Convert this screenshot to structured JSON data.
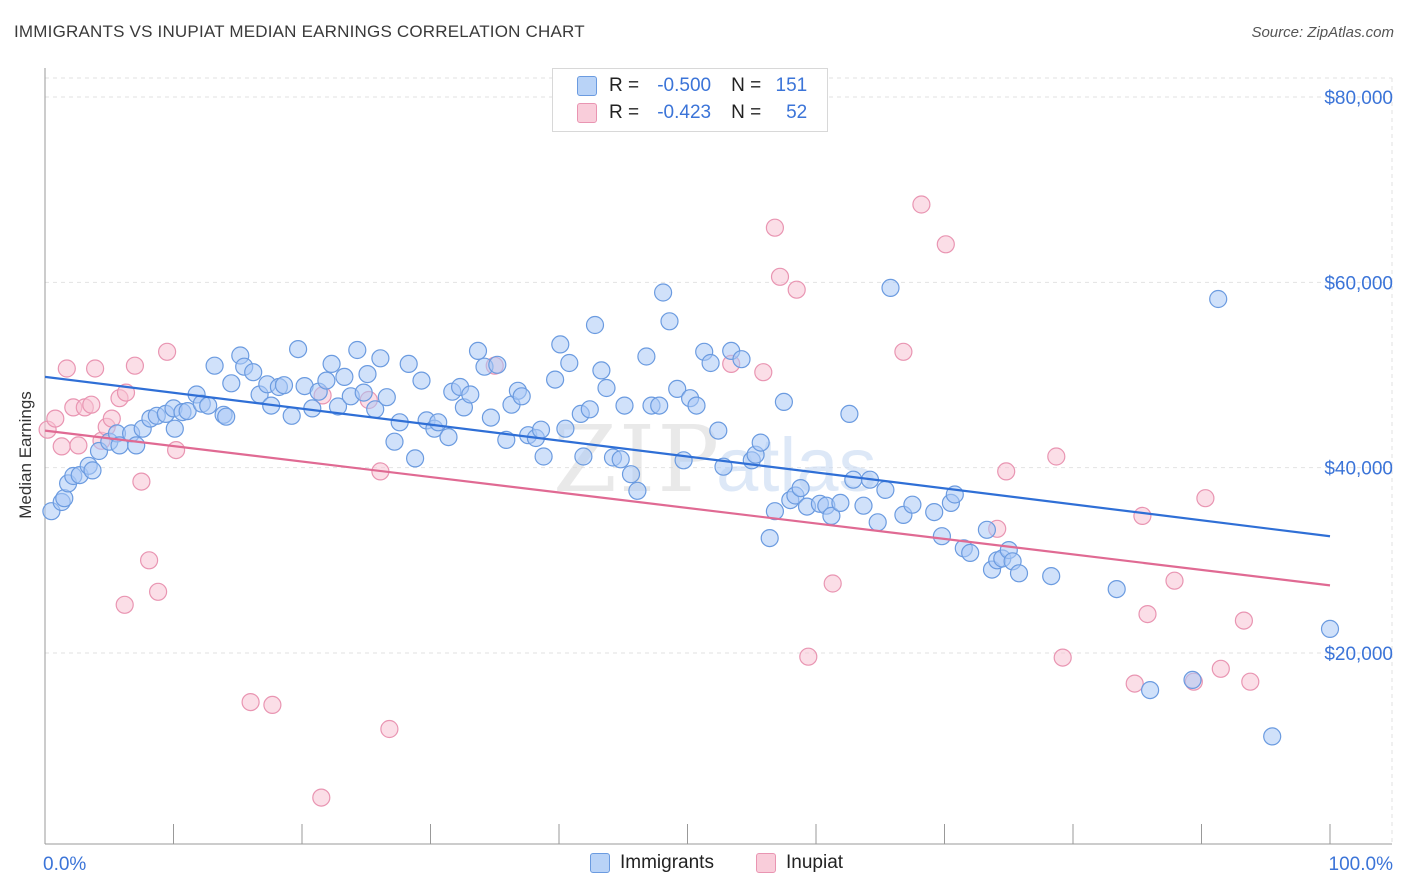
{
  "header": {
    "title": "IMMIGRANTS VS INUPIAT MEDIAN EARNINGS CORRELATION CHART",
    "source": "Source: ZipAtlas.com"
  },
  "legend_top": {
    "rows": [
      {
        "r_label": "R =",
        "r_value": "-0.500",
        "n_label": "N =",
        "n_value": "151"
      },
      {
        "r_label": "R =",
        "r_value": "-0.423",
        "n_label": "N =",
        "n_value": "52"
      }
    ]
  },
  "legend_bottom": {
    "items": [
      "Immigrants",
      "Inupiat"
    ]
  },
  "watermark": "ZIPatlas",
  "colors": {
    "immigrants_fill": "#a9c9f5",
    "immigrants_stroke": "#6b9be0",
    "immigrants_line": "#2f6fd6",
    "inupiat_fill": "#f7c3d3",
    "inupiat_stroke": "#e995b2",
    "inupiat_line": "#e06a93",
    "axis_label": "#3b74d8",
    "grid": "#e2e2e2"
  },
  "chart_data": {
    "type": "scatter",
    "title": "IMMIGRANTS VS INUPIAT MEDIAN EARNINGS CORRELATION CHART",
    "xlabel": "",
    "ylabel": "Median Earnings",
    "xlim": [
      0,
      100
    ],
    "ylim": [
      2000,
      85000
    ],
    "x_tick_labels": [
      "0.0%",
      "100.0%"
    ],
    "y_ticks": [
      20000,
      40000,
      60000,
      80000
    ],
    "y_tick_labels": [
      "$20,000",
      "$40,000",
      "$60,000",
      "$80,000"
    ],
    "grid": true,
    "legend_placement": "top-center and bottom",
    "series": [
      {
        "name": "Immigrants",
        "R": -0.5,
        "N": 151,
        "trend": {
          "x": [
            0,
            100
          ],
          "y": [
            49800,
            32600
          ]
        },
        "points": [
          [
            0.5,
            35.3
          ],
          [
            1.3,
            36.3
          ],
          [
            1.5,
            36.7
          ],
          [
            1.8,
            38.3
          ],
          [
            2.2,
            39.1
          ],
          [
            2.7,
            39.2
          ],
          [
            3.4,
            40.2
          ],
          [
            3.7,
            39.7
          ],
          [
            4.2,
            41.8
          ],
          [
            5.0,
            42.8
          ],
          [
            5.6,
            43.7
          ],
          [
            5.8,
            42.4
          ],
          [
            6.7,
            43.7
          ],
          [
            7.1,
            42.4
          ],
          [
            7.6,
            44.2
          ],
          [
            8.2,
            45.3
          ],
          [
            8.7,
            45.6
          ],
          [
            9.4,
            45.8
          ],
          [
            10.0,
            46.4
          ],
          [
            10.1,
            44.2
          ],
          [
            10.7,
            46.0
          ],
          [
            11.1,
            46.1
          ],
          [
            11.8,
            47.9
          ],
          [
            12.2,
            46.9
          ],
          [
            12.7,
            46.7
          ],
          [
            13.2,
            51.0
          ],
          [
            13.9,
            45.7
          ],
          [
            14.1,
            45.5
          ],
          [
            14.5,
            49.1
          ],
          [
            15.2,
            52.1
          ],
          [
            15.5,
            50.9
          ],
          [
            16.2,
            50.3
          ],
          [
            16.7,
            47.9
          ],
          [
            17.3,
            49.0
          ],
          [
            17.6,
            46.7
          ],
          [
            18.2,
            48.7
          ],
          [
            18.6,
            48.9
          ],
          [
            19.2,
            45.6
          ],
          [
            19.7,
            52.8
          ],
          [
            20.2,
            48.8
          ],
          [
            20.8,
            46.4
          ],
          [
            21.3,
            48.2
          ],
          [
            21.9,
            49.4
          ],
          [
            22.3,
            51.2
          ],
          [
            22.8,
            46.6
          ],
          [
            23.3,
            49.8
          ],
          [
            23.8,
            47.7
          ],
          [
            24.3,
            52.7
          ],
          [
            24.8,
            48.1
          ],
          [
            25.1,
            50.1
          ],
          [
            25.7,
            46.3
          ],
          [
            26.1,
            51.8
          ],
          [
            26.6,
            47.6
          ],
          [
            27.2,
            42.8
          ],
          [
            27.6,
            44.9
          ],
          [
            28.3,
            51.2
          ],
          [
            28.8,
            41.0
          ],
          [
            29.3,
            49.4
          ],
          [
            29.7,
            45.1
          ],
          [
            30.3,
            44.2
          ],
          [
            30.6,
            44.9
          ],
          [
            31.4,
            43.3
          ],
          [
            31.7,
            48.2
          ],
          [
            32.3,
            48.7
          ],
          [
            32.6,
            46.5
          ],
          [
            33.1,
            47.9
          ],
          [
            33.7,
            52.6
          ],
          [
            34.2,
            50.9
          ],
          [
            34.7,
            45.4
          ],
          [
            35.2,
            51.1
          ],
          [
            35.9,
            43.0
          ],
          [
            36.3,
            46.8
          ],
          [
            36.8,
            48.3
          ],
          [
            37.1,
            47.7
          ],
          [
            37.6,
            43.5
          ],
          [
            38.2,
            43.2
          ],
          [
            38.6,
            44.1
          ],
          [
            38.8,
            41.2
          ],
          [
            39.7,
            49.5
          ],
          [
            40.1,
            53.3
          ],
          [
            40.5,
            44.2
          ],
          [
            40.8,
            51.3
          ],
          [
            41.7,
            45.8
          ],
          [
            41.9,
            41.2
          ],
          [
            42.4,
            46.3
          ],
          [
            42.8,
            55.4
          ],
          [
            43.3,
            50.5
          ],
          [
            43.7,
            48.6
          ],
          [
            44.2,
            41.1
          ],
          [
            44.8,
            40.9
          ],
          [
            45.1,
            46.7
          ],
          [
            45.6,
            39.3
          ],
          [
            46.1,
            37.5
          ],
          [
            46.8,
            52.0
          ],
          [
            47.2,
            46.7
          ],
          [
            47.8,
            46.7
          ],
          [
            48.1,
            58.9
          ],
          [
            48.6,
            55.8
          ],
          [
            49.2,
            48.5
          ],
          [
            49.7,
            40.8
          ],
          [
            50.2,
            47.5
          ],
          [
            50.7,
            46.7
          ],
          [
            51.3,
            52.5
          ],
          [
            51.8,
            51.3
          ],
          [
            52.4,
            44.0
          ],
          [
            52.8,
            40.1
          ],
          [
            53.4,
            52.6
          ],
          [
            54.2,
            51.7
          ],
          [
            55.0,
            40.8
          ],
          [
            55.3,
            41.4
          ],
          [
            55.7,
            42.7
          ],
          [
            56.4,
            32.4
          ],
          [
            56.8,
            35.3
          ],
          [
            57.5,
            47.1
          ],
          [
            58.0,
            36.5
          ],
          [
            58.4,
            37.0
          ],
          [
            58.8,
            37.8
          ],
          [
            59.3,
            35.8
          ],
          [
            60.3,
            36.1
          ],
          [
            60.8,
            35.9
          ],
          [
            61.2,
            34.8
          ],
          [
            61.9,
            36.2
          ],
          [
            62.6,
            45.8
          ],
          [
            62.9,
            38.7
          ],
          [
            63.7,
            35.9
          ],
          [
            64.2,
            38.7
          ],
          [
            64.8,
            34.1
          ],
          [
            65.4,
            37.6
          ],
          [
            65.8,
            59.4
          ],
          [
            66.8,
            34.9
          ],
          [
            67.5,
            36.0
          ],
          [
            69.2,
            35.2
          ],
          [
            69.8,
            32.6
          ],
          [
            70.5,
            36.2
          ],
          [
            70.8,
            37.1
          ],
          [
            71.5,
            31.3
          ],
          [
            72.0,
            30.8
          ],
          [
            73.3,
            33.3
          ],
          [
            73.7,
            29.0
          ],
          [
            74.1,
            30.0
          ],
          [
            74.5,
            30.2
          ],
          [
            75.0,
            31.1
          ],
          [
            75.3,
            29.9
          ],
          [
            75.8,
            28.6
          ],
          [
            78.3,
            28.3
          ],
          [
            83.4,
            26.9
          ],
          [
            86.0,
            16.0
          ],
          [
            89.3,
            17.1
          ],
          [
            91.3,
            58.2
          ],
          [
            95.5,
            11.0
          ],
          [
            100.0,
            22.6
          ]
        ]
      },
      {
        "name": "Inupiat",
        "R": -0.423,
        "N": 52,
        "trend": {
          "x": [
            0,
            100
          ],
          "y": [
            44000,
            27300
          ]
        },
        "points": [
          [
            0.2,
            44.1
          ],
          [
            0.8,
            45.3
          ],
          [
            1.3,
            42.3
          ],
          [
            1.7,
            50.7
          ],
          [
            2.2,
            46.5
          ],
          [
            2.6,
            42.4
          ],
          [
            3.1,
            46.5
          ],
          [
            3.6,
            46.8
          ],
          [
            3.9,
            50.7
          ],
          [
            4.4,
            42.9
          ],
          [
            4.8,
            44.4
          ],
          [
            5.2,
            45.3
          ],
          [
            5.8,
            47.5
          ],
          [
            6.3,
            48.1
          ],
          [
            7.0,
            51.0
          ],
          [
            7.5,
            38.5
          ],
          [
            8.1,
            30.0
          ],
          [
            8.8,
            26.6
          ],
          [
            9.5,
            52.5
          ],
          [
            10.2,
            41.9
          ],
          [
            6.2,
            25.2
          ],
          [
            16.0,
            14.7
          ],
          [
            17.7,
            14.4
          ],
          [
            21.5,
            4.4
          ],
          [
            21.6,
            47.8
          ],
          [
            25.2,
            47.3
          ],
          [
            26.1,
            39.6
          ],
          [
            26.8,
            11.8
          ],
          [
            35.0,
            51.0
          ],
          [
            53.4,
            51.2
          ],
          [
            55.9,
            50.3
          ],
          [
            56.8,
            65.9
          ],
          [
            57.2,
            60.6
          ],
          [
            58.5,
            59.2
          ],
          [
            59.4,
            19.6
          ],
          [
            61.3,
            27.5
          ],
          [
            66.8,
            52.5
          ],
          [
            68.2,
            68.4
          ],
          [
            70.1,
            64.1
          ],
          [
            74.1,
            33.4
          ],
          [
            74.8,
            39.6
          ],
          [
            78.7,
            41.2
          ],
          [
            79.2,
            19.5
          ],
          [
            84.8,
            16.7
          ],
          [
            85.4,
            34.8
          ],
          [
            85.8,
            24.2
          ],
          [
            87.9,
            27.8
          ],
          [
            89.4,
            16.9
          ],
          [
            90.3,
            36.7
          ],
          [
            91.5,
            18.3
          ],
          [
            93.3,
            23.5
          ],
          [
            93.8,
            16.9
          ]
        ]
      }
    ]
  }
}
